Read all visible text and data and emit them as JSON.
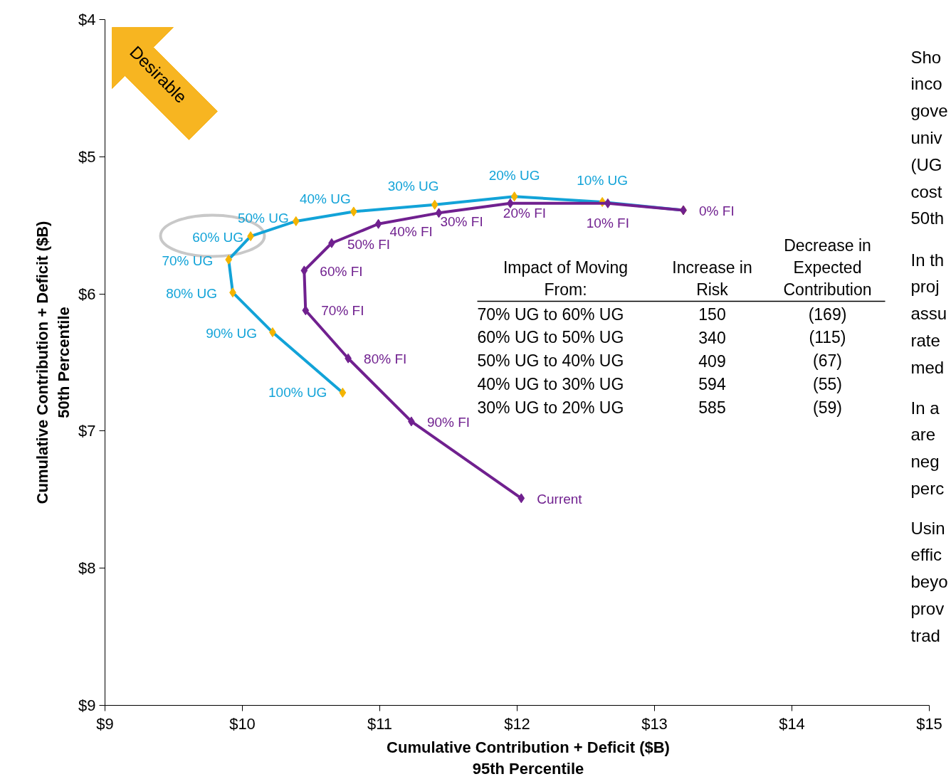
{
  "chart_data": {
    "type": "line",
    "xlabel": "Cumulative Contribution + Deficit ($B)\n95th Percentile",
    "ylabel": "Cumulative Contribution + Deficit ($B)\n50th Percentile",
    "xlim": [
      9,
      15
    ],
    "ylim": [
      9,
      4
    ],
    "xticks": [
      {
        "value": 9,
        "label": "$9"
      },
      {
        "value": 10,
        "label": "$10"
      },
      {
        "value": 11,
        "label": "$11"
      },
      {
        "value": 12,
        "label": "$12"
      },
      {
        "value": 13,
        "label": "$13"
      },
      {
        "value": 14,
        "label": "$14"
      },
      {
        "value": 15,
        "label": "$15"
      }
    ],
    "yticks": [
      {
        "value": 4,
        "label": "$4"
      },
      {
        "value": 5,
        "label": "$5"
      },
      {
        "value": 6,
        "label": "$6"
      },
      {
        "value": 7,
        "label": "$7"
      },
      {
        "value": 8,
        "label": "$8"
      },
      {
        "value": 9,
        "label": "$9"
      }
    ],
    "grid": false,
    "marker": "diamond",
    "line_style": "solid",
    "series": [
      {
        "color": "#12a3d8",
        "colors": [
          "#f4b400",
          "#f4b400",
          "#f4b400",
          "#f4b400",
          "#f4b400",
          "#f4b400",
          "#f4b400",
          "#f4b400",
          "#f4b400",
          "#f4b400",
          "#f4b400"
        ],
        "x": [
          13.21,
          12.62,
          11.98,
          11.4,
          10.81,
          10.39,
          10.06,
          9.9,
          9.93,
          10.22,
          10.73
        ],
        "values": [
          5.39,
          5.33,
          5.29,
          5.35,
          5.4,
          5.47,
          5.58,
          5.75,
          5.99,
          6.28,
          6.72
        ]
      },
      {
        "color": "#70208f",
        "x": [
          13.21,
          12.66,
          11.95,
          11.43,
          10.99,
          10.65,
          10.45,
          10.46,
          10.77,
          11.23,
          12.03
        ],
        "values": [
          5.39,
          5.34,
          5.34,
          5.41,
          5.49,
          5.63,
          5.83,
          6.12,
          6.47,
          6.93,
          7.49
        ]
      }
    ],
    "annotations": [
      "Desirable",
      "Impact of Moving\nFrom:",
      "Increase in\nRisk",
      "Decrease in\nExpected\nContribution",
      "70% UG to 60% UG",
      "150",
      "(169)",
      "60% UG to 50% UG",
      "340",
      "(115)",
      "50% UG to 40% UG",
      "409",
      "(67)",
      "40% UG to 30% UG",
      "594",
      "(55)",
      "30% UG to 20% UG",
      "585",
      "(59)",
      "Sho\ninco\ngove\nuniv\n(UG\ncost\n50th",
      "In th\nproj\nassu\nrate\nmed",
      "In a\nare\nneg\nperc",
      "Usin\neffic\nbeyo\nprov\ntrad",
      {
        "text": "10% UG",
        "x": 12.62,
        "y": 5.33
      },
      {
        "text": "20% UG",
        "x": 11.98,
        "y": 5.29
      },
      {
        "text": "30% UG",
        "x": 11.4,
        "y": 5.35
      },
      {
        "text": "40% UG",
        "x": 10.81,
        "y": 5.4
      },
      {
        "text": "50% UG",
        "x": 10.39,
        "y": 5.47
      },
      {
        "text": "60% UG",
        "x": 10.06,
        "y": 5.58
      },
      {
        "text": "70% UG",
        "x": 9.9,
        "y": 5.75
      },
      {
        "text": "80% UG",
        "x": 9.93,
        "y": 5.99
      },
      {
        "text": "90% UG",
        "x": 10.22,
        "y": 6.28
      },
      {
        "text": "100% UG",
        "x": 10.73,
        "y": 6.72
      },
      {
        "text": "0% FI",
        "x": 13.21,
        "y": 5.39
      },
      {
        "text": "10% FI",
        "x": 12.66,
        "y": 5.34
      },
      {
        "text": "20% FI",
        "x": 11.95,
        "y": 5.34
      },
      {
        "text": "30% FI",
        "x": 11.43,
        "y": 5.41
      },
      {
        "text": "40% FI",
        "x": 10.99,
        "y": 5.49
      },
      {
        "text": "50% FI",
        "x": 10.65,
        "y": 5.63
      },
      {
        "text": "60% FI",
        "x": 10.45,
        "y": 5.83
      },
      {
        "text": "70% FI",
        "x": 10.46,
        "y": 6.12
      },
      {
        "text": "80% FI",
        "x": 10.77,
        "y": 6.47
      },
      {
        "text": "90% FI",
        "x": 11.23,
        "y": 6.93
      },
      {
        "text": "Current",
        "x": 12.03,
        "y": 7.49
      }
    ]
  }
}
